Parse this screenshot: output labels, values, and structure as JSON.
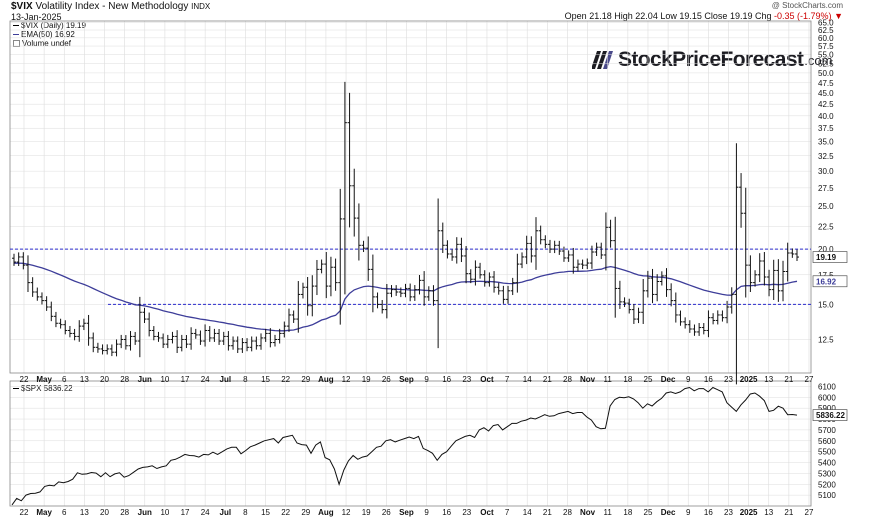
{
  "header": {
    "symbol": "$VIX",
    "name": "Volatility Index - New Methodology",
    "exchange": "INDX",
    "date": "13-Jan-2025",
    "credit": "@ StockCharts.com",
    "open_label": "Open",
    "open": "21.18",
    "high_label": "High",
    "high": "22.04",
    "low_label": "Low",
    "low": "19.15",
    "close_label": "Close",
    "close": "19.19",
    "chg_label": "Chg",
    "chg": "-0.35 (-1.79%)"
  },
  "legend": {
    "vix": "$VIX (Daily) 19.19",
    "ema": "EMA(50) 16.92",
    "volume": "Volume undef"
  },
  "logo": {
    "text": "StockPriceForecast",
    "suffix": ".com"
  },
  "spx_legend": "$SPX 5836.22",
  "colors": {
    "bars": "#111111",
    "ema": "#3d3d99",
    "dashed": "#2a2acc",
    "spx": "#111111",
    "grid": "#dddddd",
    "red": "#cc0000"
  },
  "chart_data": [
    {
      "type": "ohlc",
      "series_name": "$VIX (Daily)",
      "ylim": [
        10.5,
        65.5
      ],
      "y_scale": "log",
      "y_ticks": [
        12.5,
        15.0,
        17.5,
        20.0,
        22.5,
        25.0,
        27.5,
        30.0,
        32.5,
        35.0,
        37.5,
        40.0,
        42.5,
        45.0,
        47.5,
        50.0,
        52.5,
        55.0,
        57.5,
        60.0,
        62.5,
        65.0
      ],
      "y_tick_labels": [
        "12.5",
        "15.0",
        "17.5",
        "20.0",
        "22.5",
        "25.0",
        "27.5",
        "30.0",
        "32.5",
        "35.0",
        "37.5",
        "40.0",
        "42.5",
        "45.0",
        "47.5",
        "50.0",
        "52.5",
        "55.0",
        "57.5",
        "60.0",
        "62.5",
        "65.0"
      ],
      "horizontal_lines": [
        20.0,
        15.0
      ],
      "last_value_label": "19.19",
      "ema_value_label": "16.92",
      "x_labels": [
        "22",
        "May",
        "6",
        "13",
        "20",
        "28",
        "Jun",
        "10",
        "17",
        "24",
        "Jul",
        "8",
        "15",
        "22",
        "29",
        "Aug",
        "12",
        "19",
        "26",
        "Sep",
        "9",
        "16",
        "23",
        "Oct",
        "7",
        "14",
        "21",
        "28",
        "Nov",
        "11",
        "18",
        "25",
        "Dec",
        "9",
        "16",
        "23",
        "2025",
        "13",
        "21",
        "27"
      ],
      "close": [
        18.7,
        19.2,
        18.4,
        16.8,
        16.0,
        15.6,
        15.3,
        14.8,
        14.1,
        13.6,
        13.5,
        13.1,
        12.9,
        12.7,
        13.4,
        13.6,
        12.6,
        12.0,
        11.9,
        11.8,
        11.9,
        11.7,
        12.2,
        12.5,
        12.1,
        12.7,
        12.4,
        14.4,
        13.9,
        13.1,
        12.7,
        12.6,
        12.2,
        12.5,
        12.7,
        12.0,
        12.5,
        12.2,
        12.9,
        12.8,
        12.4,
        13.1,
        12.6,
        12.9,
        12.4,
        12.7,
        12.1,
        12.4,
        11.9,
        12.3,
        12.0,
        12.4,
        12.1,
        12.6,
        12.9,
        12.3,
        12.5,
        12.9,
        13.4,
        14.2,
        13.9,
        15.8,
        16.4,
        14.9,
        16.5,
        18.0,
        18.5,
        16.5,
        18.2,
        16.8,
        23.4,
        38.6,
        27.8,
        23.5,
        20.4,
        20.1,
        18.0,
        15.6,
        15.0,
        14.6,
        15.9,
        16.2,
        16.0,
        15.9,
        16.3,
        15.6,
        16.2,
        17.0,
        15.6,
        16.1,
        15.3,
        22.0,
        20.4,
        19.5,
        19.2,
        20.5,
        19.3,
        17.6,
        17.1,
        18.2,
        17.5,
        16.8,
        17.3,
        16.4,
        16.1,
        15.4,
        16.1,
        16.8,
        18.5,
        19.2,
        20.6,
        19.3,
        22.0,
        21.0,
        20.5,
        20.0,
        20.4,
        19.8,
        19.1,
        19.4,
        18.2,
        18.5,
        18.4,
        18.6,
        19.7,
        20.2,
        19.4,
        22.4,
        20.9,
        16.3,
        15.2,
        15.1,
        14.6,
        13.9,
        14.4,
        16.1,
        17.2,
        15.8,
        16.9,
        17.4,
        16.2,
        15.3,
        14.2,
        13.7,
        13.5,
        13.2,
        13.0,
        13.3,
        13.1,
        14.0,
        13.8,
        14.2,
        14.0,
        14.8,
        15.8,
        27.6,
        24.1,
        18.4,
        16.8,
        17.5,
        18.8,
        17.3,
        16.2,
        17.9,
        16.1,
        17.8,
        19.6,
        19.5,
        19.19
      ],
      "ema50_last": 16.92
    },
    {
      "type": "line",
      "series_name": "$SPX",
      "last_value": 5836.22,
      "last_value_label": "5836.22",
      "ylim": [
        5000,
        6150
      ],
      "y_ticks": [
        5100,
        5200,
        5300,
        5400,
        5500,
        5600,
        5700,
        5800,
        5900,
        6000,
        6100
      ],
      "y_tick_labels": [
        "5100",
        "5200",
        "5300",
        "5400",
        "5500",
        "5600",
        "5700",
        "5800",
        "5900",
        "6000",
        "6100"
      ],
      "x_labels": [
        "22",
        "May",
        "6",
        "13",
        "20",
        "28",
        "Jun",
        "10",
        "17",
        "24",
        "Jul",
        "8",
        "15",
        "22",
        "29",
        "Aug",
        "12",
        "19",
        "26",
        "Sep",
        "9",
        "16",
        "23",
        "Oct",
        "7",
        "14",
        "21",
        "28",
        "Nov",
        "11",
        "18",
        "25",
        "Dec",
        "9",
        "16",
        "23",
        "2025",
        "13",
        "21",
        "27"
      ],
      "values": [
        5010,
        5070,
        5048,
        5100,
        5115,
        5118,
        5130,
        5180,
        5190,
        5185,
        5222,
        5214,
        5225,
        5247,
        5305,
        5292,
        5295,
        5308,
        5303,
        5270,
        5305,
        5270,
        5295,
        5305,
        5265,
        5280,
        5310,
        5340,
        5355,
        5360,
        5370,
        5345,
        5360,
        5370,
        5420,
        5430,
        5450,
        5475,
        5465,
        5462,
        5450,
        5475,
        5470,
        5495,
        5475,
        5500,
        5525,
        5540,
        5540,
        5480,
        5510,
        5545,
        5560,
        5580,
        5600,
        5610,
        5620,
        5580,
        5630,
        5640,
        5650,
        5580,
        5565,
        5560,
        5485,
        5560,
        5590,
        5445,
        5425,
        5340,
        5200,
        5330,
        5415,
        5465,
        5430,
        5450,
        5460,
        5500,
        5540,
        5550,
        5600,
        5610,
        5590,
        5605,
        5620,
        5635,
        5620,
        5640,
        5530,
        5510,
        5485,
        5420,
        5475,
        5500,
        5550,
        5600,
        5620,
        5640,
        5650,
        5630,
        5700,
        5720,
        5690,
        5740,
        5750,
        5700,
        5730,
        5760,
        5760,
        5780,
        5790,
        5810,
        5800,
        5820,
        5840,
        5825,
        5830,
        5850,
        5860,
        5870,
        5850,
        5860,
        5860,
        5820,
        5790,
        5730,
        5710,
        5715,
        5920,
        5980,
        6000,
        5995,
        6005,
        5985,
        5950,
        5900,
        5940,
        5920,
        5960,
        5990,
        6040,
        6050,
        6035,
        6050,
        6080,
        6090,
        6060,
        6080,
        6080,
        6050,
        6090,
        6070,
        6050,
        5950,
        5910,
        5870,
        5930,
        5975,
        6030,
        6040,
        6010,
        5970,
        5870,
        5880,
        5918,
        5900,
        5840,
        5842,
        5836.22
      ]
    }
  ]
}
